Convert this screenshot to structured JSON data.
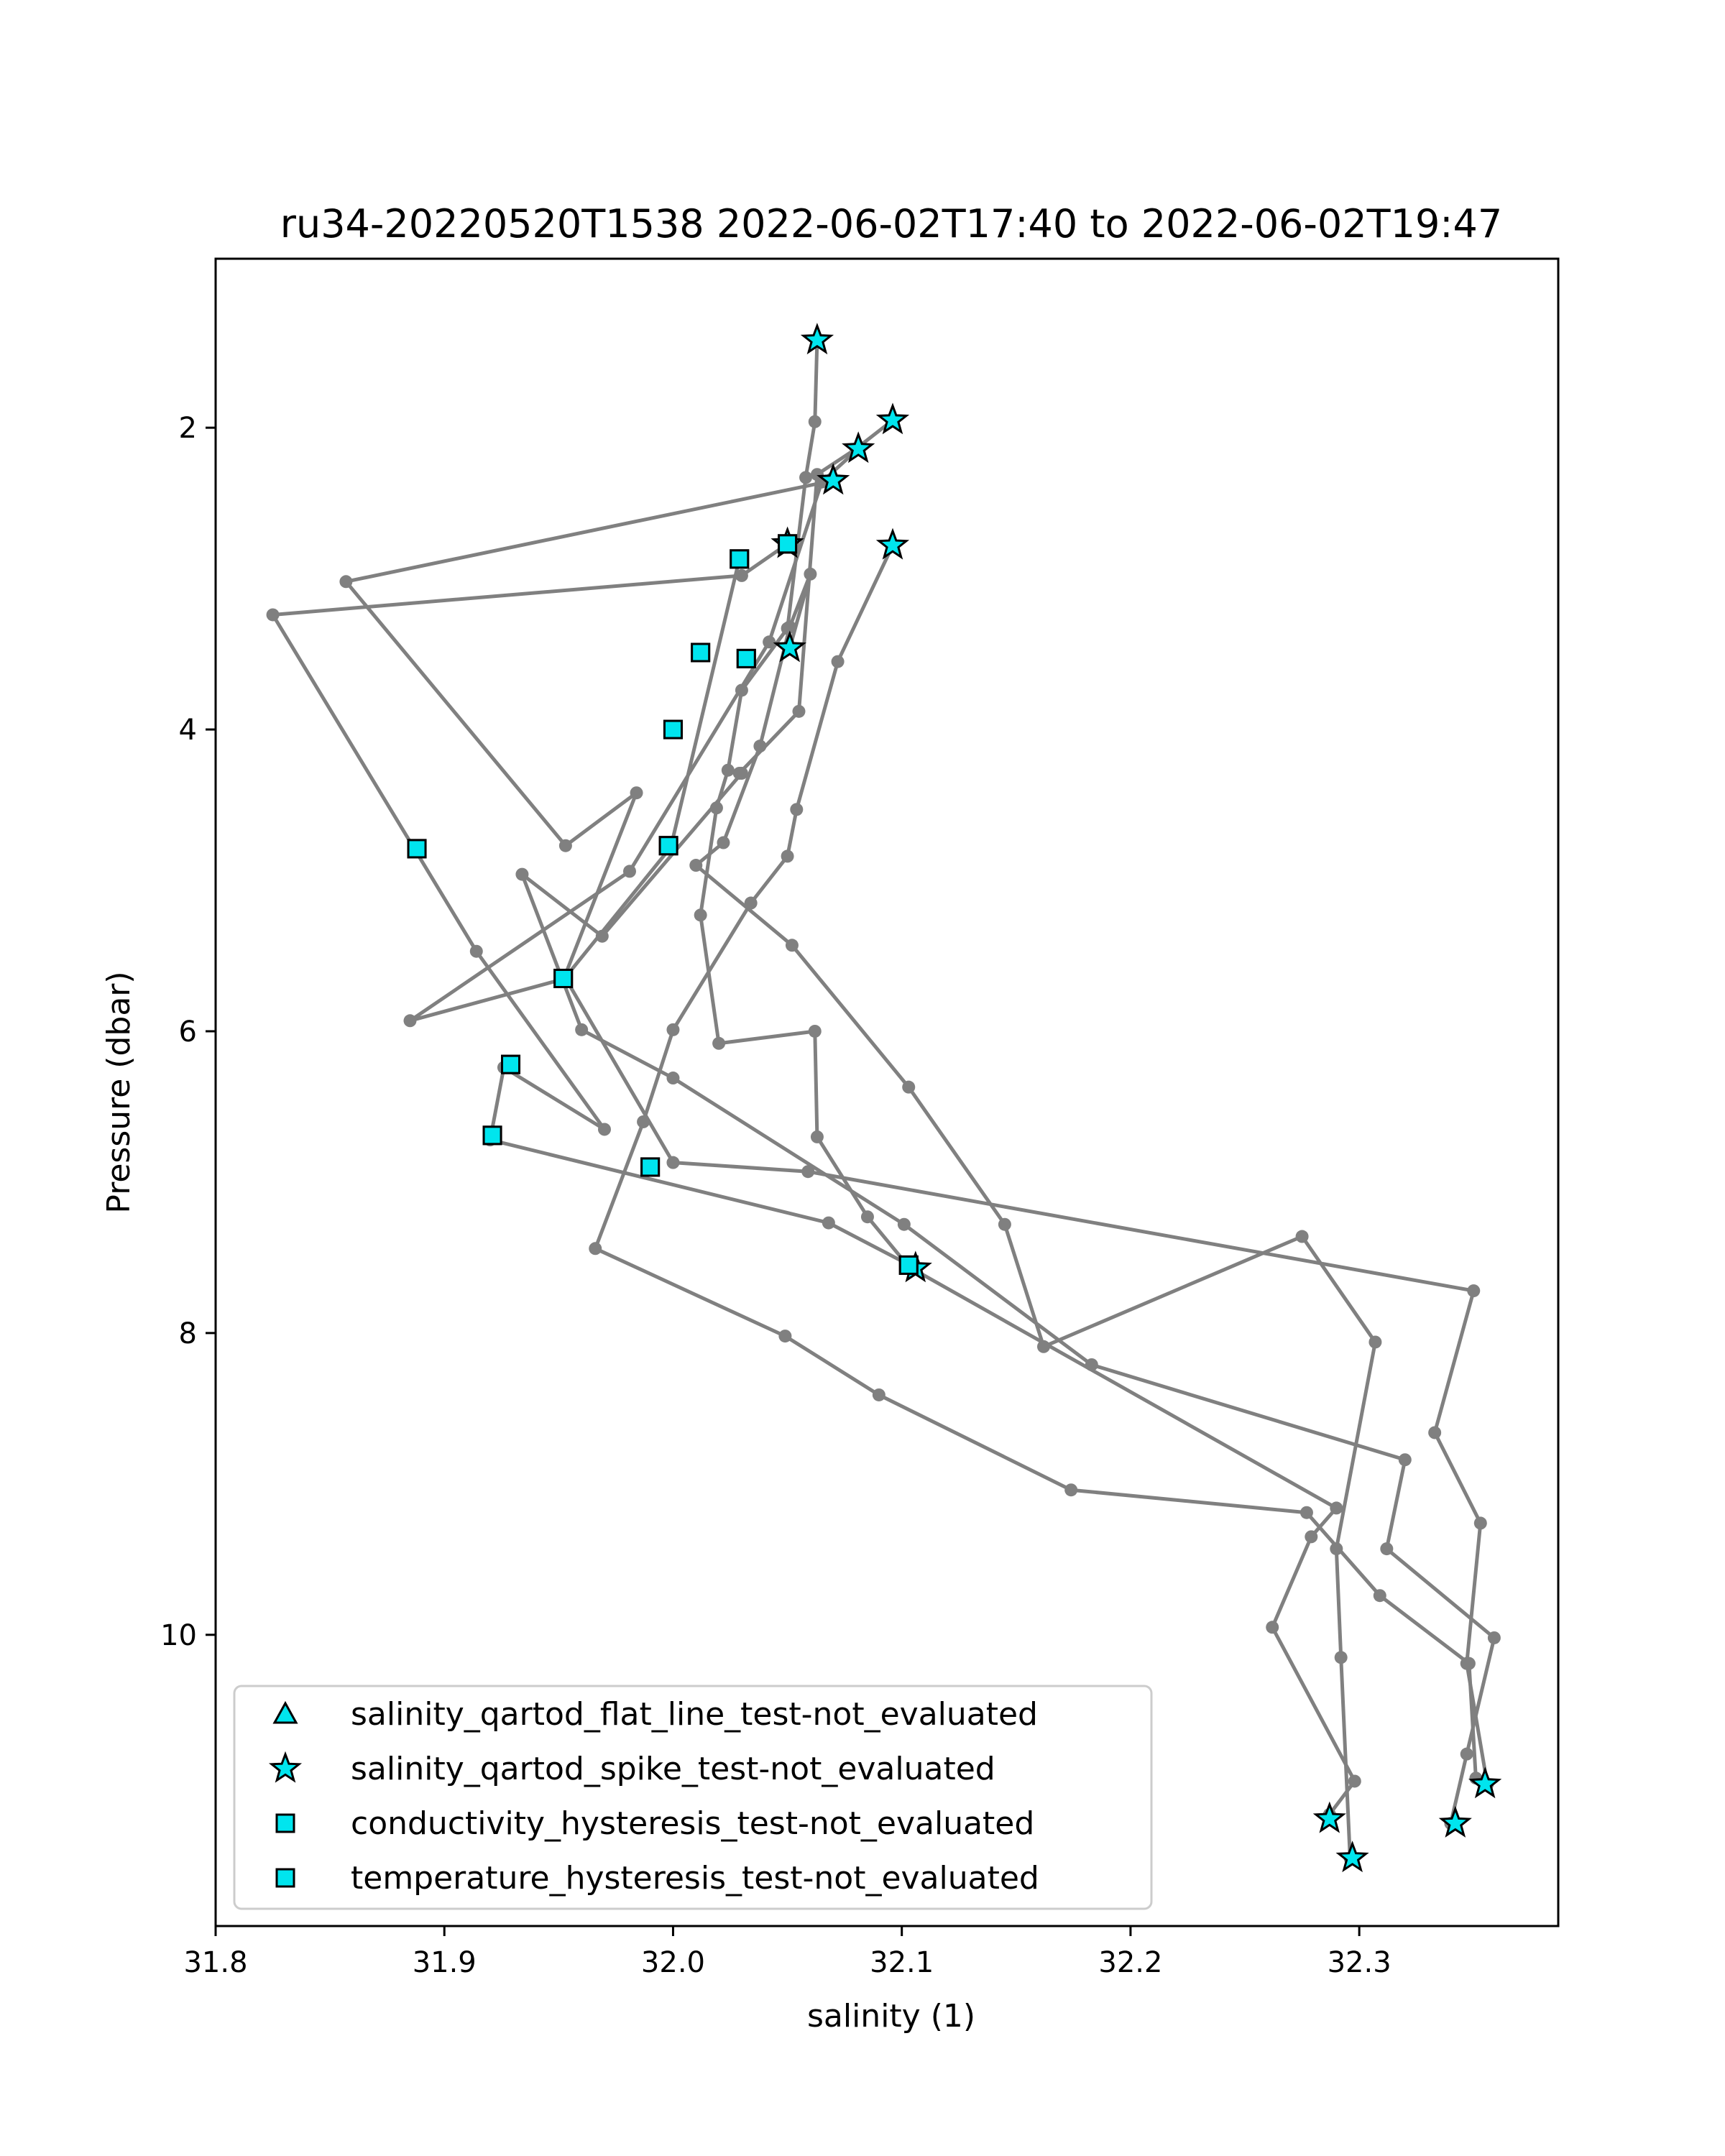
{
  "chart_data": {
    "type": "scatter",
    "title": "ru34-20220520T1538 2022-06-02T17:40 to 2022-06-02T19:47",
    "xlabel": "salinity (1)",
    "ylabel": "Pressure (dbar)",
    "xlim": [
      31.8,
      32.387
    ],
    "ylim": [
      11.93,
      0.88
    ],
    "y_inverted": true,
    "xticks": [
      31.8,
      31.9,
      32.0,
      32.1,
      32.2,
      32.3
    ],
    "xtick_labels": [
      "31.8",
      "31.9",
      "32.0",
      "32.1",
      "32.2",
      "32.3"
    ],
    "yticks": [
      2,
      4,
      6,
      8,
      10
    ],
    "ytick_labels": [
      "2",
      "4",
      "6",
      "8",
      "10"
    ],
    "grid": false,
    "legend_position": "lower-left",
    "colors": {
      "line": "#808080",
      "marker_fill": "#00e5ee",
      "marker_edge": "#000000"
    },
    "profiles": [
      {
        "x": [
          32.063,
          32.062,
          32.058,
          32.05,
          32.03,
          32.024,
          32.019,
          32.012,
          32.02,
          32.062,
          32.063,
          32.085,
          32.103,
          32.29,
          32.279,
          32.262,
          32.298,
          32.287,
          32.287
        ],
        "y": [
          1.42,
          1.96,
          2.33,
          3.33,
          3.74,
          4.27,
          4.52,
          5.23,
          6.08,
          6.0,
          6.7,
          7.23,
          7.56,
          9.16,
          9.35,
          9.95,
          10.97,
          11.19,
          11.22
        ]
      },
      {
        "x": [
          32.096,
          32.08,
          32.063,
          32.055,
          32.029,
          32.03,
          31.969,
          31.934,
          31.96,
          32.0,
          32.101,
          32.183,
          32.32,
          32.312,
          32.359,
          32.347,
          32.34
        ],
        "y": [
          1.95,
          2.14,
          2.31,
          3.88,
          4.29,
          4.29,
          5.37,
          4.96,
          5.99,
          6.31,
          7.28,
          8.21,
          8.84,
          9.43,
          10.02,
          10.79,
          11.25
        ]
      },
      {
        "x": [
          32.096,
          32.072,
          32.054,
          32.05,
          32.034,
          32.0,
          31.987,
          31.966,
          32.049,
          32.09,
          32.174,
          32.277,
          32.309,
          32.348,
          32.351
        ],
        "y": [
          2.78,
          3.55,
          4.53,
          4.84,
          5.15,
          5.99,
          6.6,
          7.44,
          8.02,
          8.41,
          9.04,
          9.19,
          9.74,
          10.19,
          10.95
        ]
      },
      {
        "x": [
          32.051,
          32.06,
          32.051,
          32.038,
          32.022,
          32.01,
          32.052,
          32.103,
          32.145,
          32.162,
          32.275,
          32.307,
          32.29,
          32.292,
          32.296
        ],
        "y": [
          3.46,
          2.97,
          3.32,
          4.11,
          4.75,
          4.9,
          5.43,
          6.37,
          7.28,
          8.09,
          7.36,
          8.06,
          9.43,
          10.15,
          11.48
        ]
      },
      {
        "x": [
          32.081,
          32.065,
          32.042,
          31.981,
          31.885,
          31.953,
          32.0,
          32.059,
          32.35,
          32.333,
          32.353,
          32.347,
          32.356
        ],
        "y": [
          2.14,
          2.36,
          3.42,
          4.94,
          5.93,
          5.65,
          6.87,
          6.93,
          7.72,
          8.66,
          9.26,
          10.19,
          10.99
        ]
      },
      {
        "x": [
          32.07,
          31.857,
          31.953,
          31.984,
          31.952,
          31.999,
          32.029
        ],
        "y": [
          2.35,
          3.02,
          4.77,
          4.42,
          5.66,
          4.78,
          2.87
        ]
      },
      {
        "x": [
          32.05,
          32.03,
          31.825,
          31.914,
          31.97,
          31.926,
          31.92,
          32.068,
          32.106
        ],
        "y": [
          2.77,
          2.98,
          3.24,
          5.47,
          6.65,
          6.24,
          6.72,
          7.27,
          7.57
        ]
      }
    ],
    "series": [
      {
        "name": "salinity_qartod_flat_line_test-not_evaluated",
        "marker": "triangle",
        "x": [],
        "y": []
      },
      {
        "name": "salinity_qartod_spike_test-not_evaluated",
        "marker": "star",
        "x": [
          32.063,
          32.096,
          32.081,
          32.07,
          32.096,
          32.05,
          32.051,
          32.106,
          32.355,
          32.287,
          32.342,
          32.297
        ],
        "y": [
          1.42,
          1.95,
          2.14,
          2.35,
          2.78,
          2.77,
          3.46,
          7.57,
          10.99,
          11.22,
          11.25,
          11.48
        ]
      },
      {
        "name": "conductivity_hysteresis_test-not_evaluated",
        "marker": "square",
        "x": [
          32.05,
          32.029,
          32.012,
          32.032,
          32.0,
          31.888,
          31.952,
          31.998,
          31.929,
          31.921,
          31.99,
          32.103
        ],
        "y": [
          2.77,
          2.87,
          3.49,
          3.53,
          4.0,
          4.79,
          5.65,
          4.77,
          6.22,
          6.69,
          6.9,
          7.55
        ]
      },
      {
        "name": "temperature_hysteresis_test-not_evaluated",
        "marker": "square",
        "x": [
          32.05,
          32.029,
          32.012,
          32.032,
          32.0,
          31.888,
          31.952,
          31.998,
          31.929,
          31.921,
          31.99,
          32.103
        ],
        "y": [
          2.77,
          2.87,
          3.49,
          3.53,
          4.0,
          4.79,
          5.65,
          4.77,
          6.22,
          6.69,
          6.9,
          7.55
        ]
      }
    ]
  }
}
